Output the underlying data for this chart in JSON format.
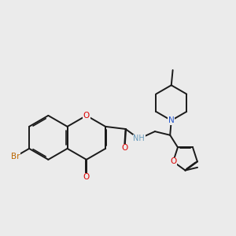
{
  "bg": "#ebebeb",
  "bc": "#1a1a1a",
  "bw": 1.4,
  "colors": {
    "O": "#dd0000",
    "N": "#2255cc",
    "Br": "#bb6600",
    "NH": "#6699bb",
    "C": "#1a1a1a"
  },
  "fs": 7.5
}
